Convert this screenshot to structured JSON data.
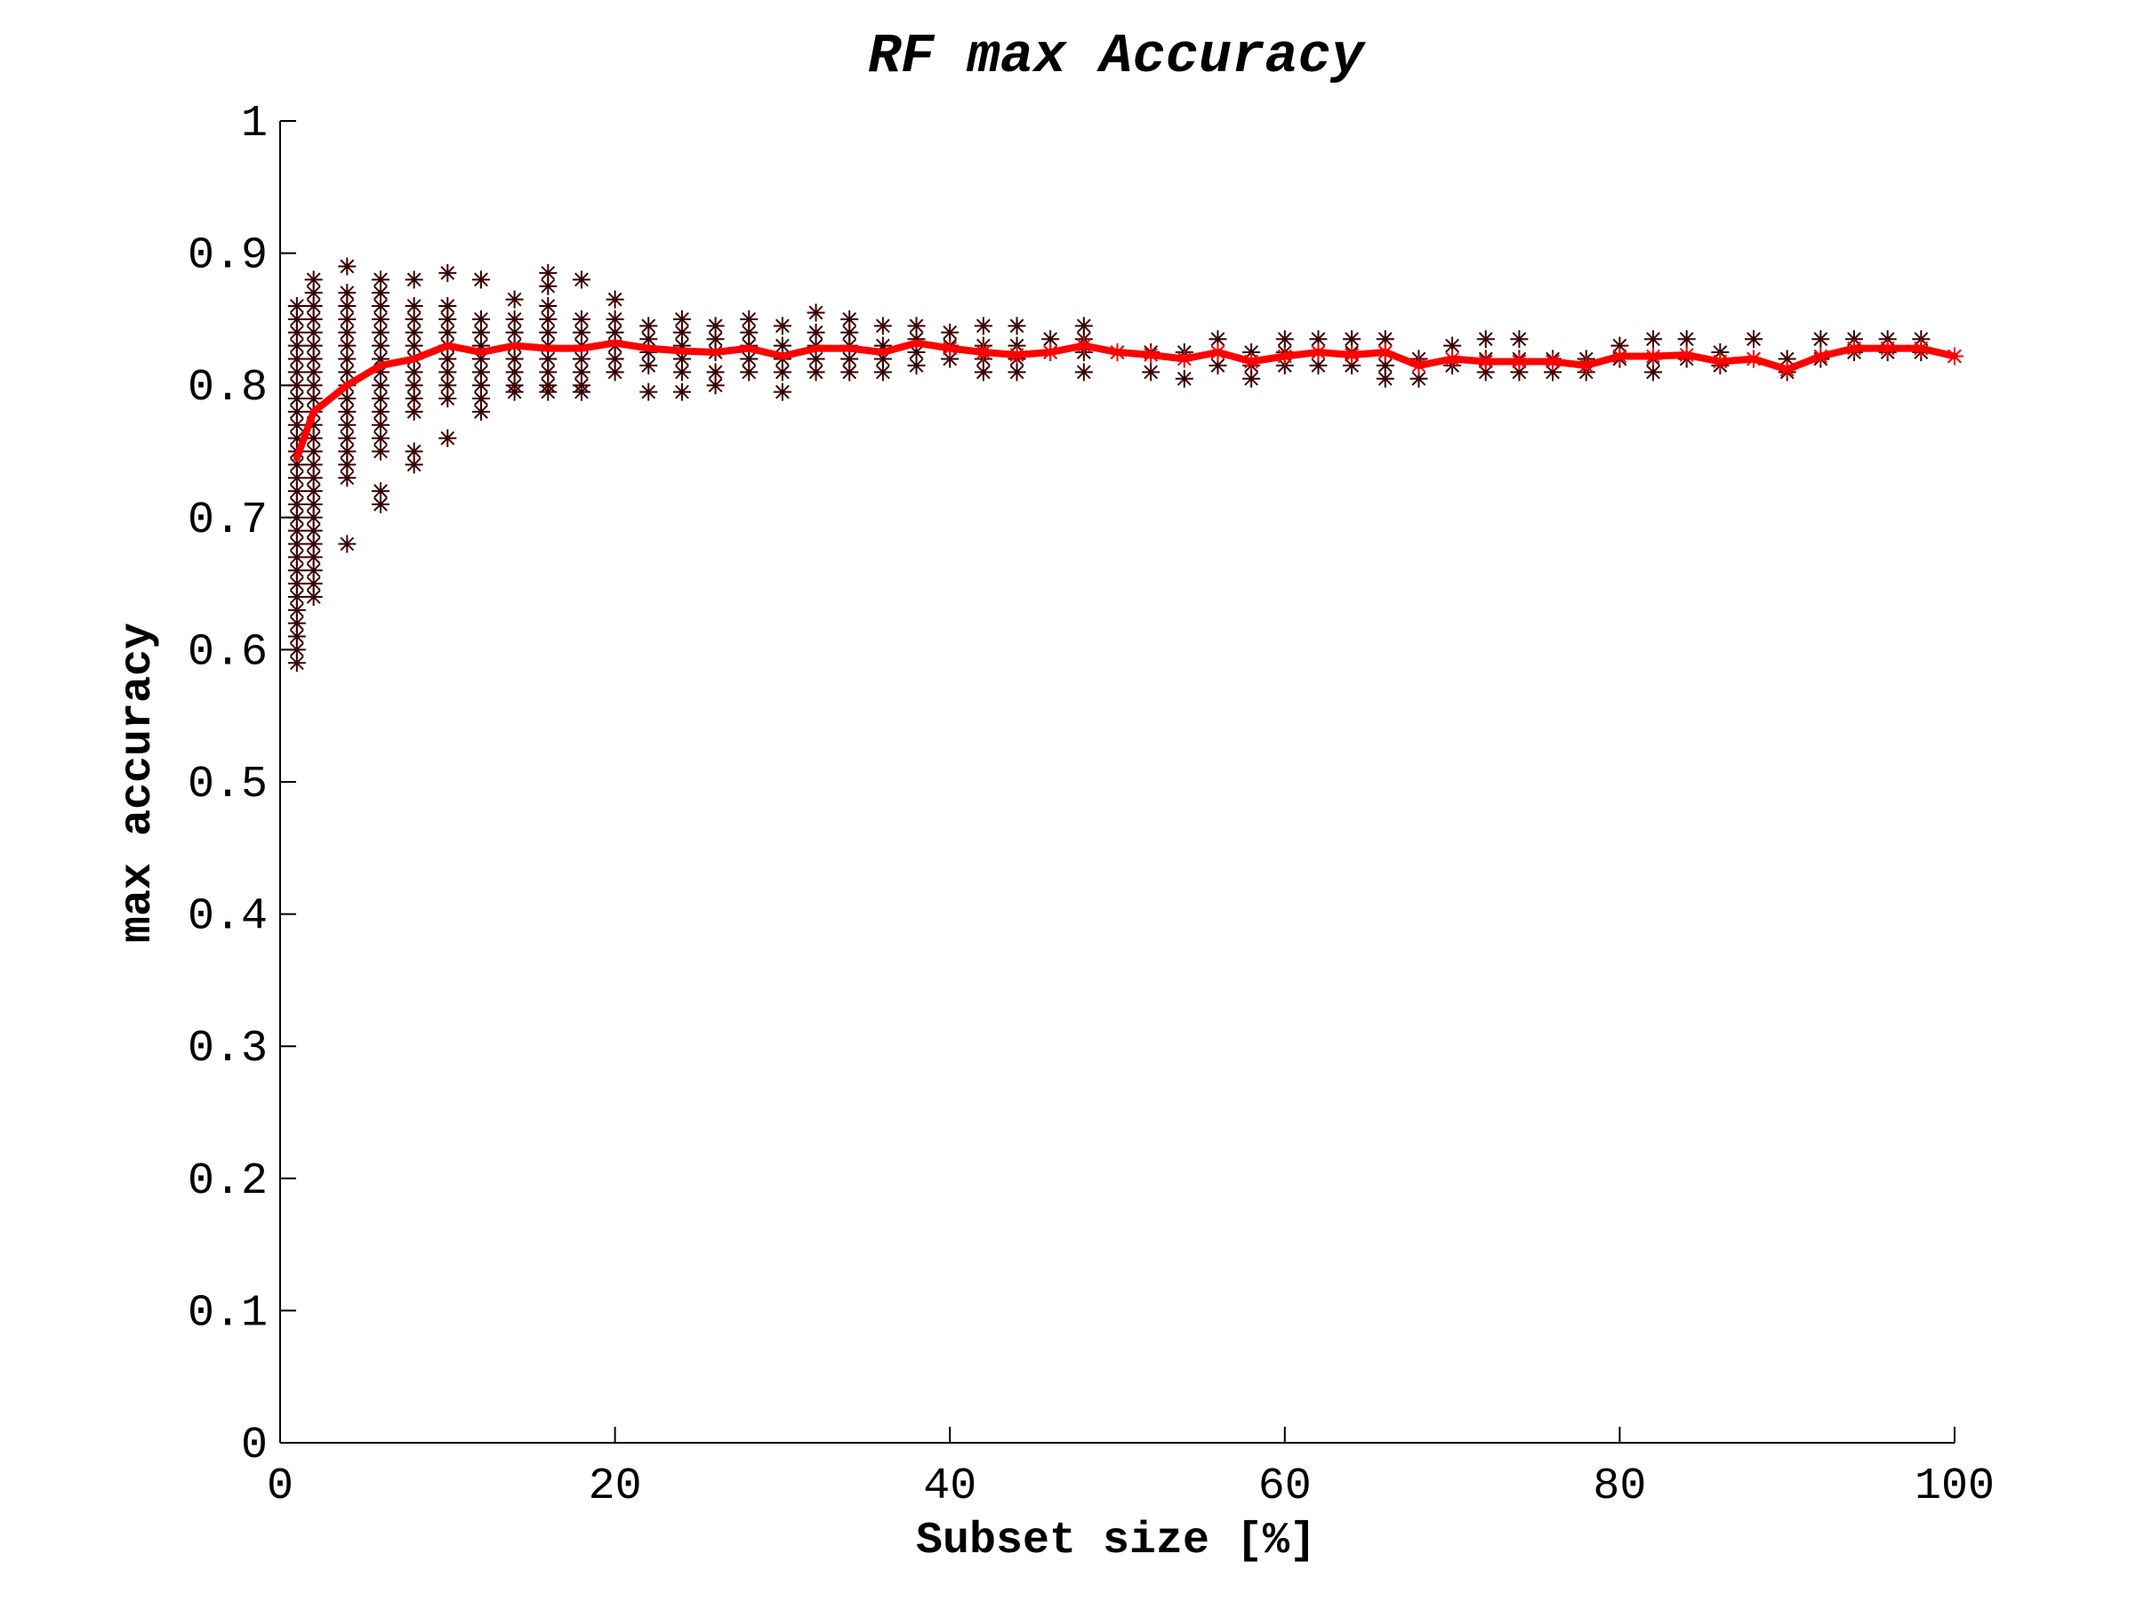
{
  "chart_data": {
    "type": "scatter",
    "title": "RF max Accuracy",
    "xlabel": "Subset size [%]",
    "ylabel": "max accuracy",
    "xlim": [
      0,
      100
    ],
    "ylim": [
      0,
      1
    ],
    "x_ticks": [
      0,
      20,
      40,
      60,
      80,
      100
    ],
    "x_tick_labels": [
      "0",
      "20",
      "40",
      "60",
      "80",
      "100"
    ],
    "y_ticks": [
      0,
      0.1,
      0.2,
      0.3,
      0.4,
      0.5,
      0.6,
      0.7,
      0.8,
      0.9,
      1
    ],
    "y_tick_labels": [
      "0",
      "0.1",
      "0.2",
      "0.3",
      "0.4",
      "0.5",
      "0.6",
      "0.7",
      "0.8",
      "0.9",
      "1"
    ],
    "grid": false,
    "series": [
      {
        "kind": "scatter",
        "marker": "asterisk",
        "color": "#3a0000",
        "points": [
          {
            "x": 1,
            "y": [
              0.86,
              0.85,
              0.84,
              0.83,
              0.82,
              0.81,
              0.8,
              0.79,
              0.78,
              0.77,
              0.76,
              0.75,
              0.74,
              0.73,
              0.72,
              0.71,
              0.7,
              0.69,
              0.68,
              0.67,
              0.66,
              0.65,
              0.64,
              0.63,
              0.62,
              0.61,
              0.6,
              0.59
            ]
          },
          {
            "x": 2,
            "y": [
              0.88,
              0.87,
              0.86,
              0.85,
              0.84,
              0.83,
              0.82,
              0.81,
              0.8,
              0.79,
              0.78,
              0.77,
              0.76,
              0.75,
              0.74,
              0.73,
              0.72,
              0.71,
              0.7,
              0.69,
              0.68,
              0.67,
              0.66,
              0.65,
              0.64
            ]
          },
          {
            "x": 4,
            "y": [
              0.89,
              0.87,
              0.86,
              0.85,
              0.84,
              0.83,
              0.82,
              0.81,
              0.8,
              0.79,
              0.78,
              0.77,
              0.76,
              0.75,
              0.74,
              0.73,
              0.68
            ]
          },
          {
            "x": 6,
            "y": [
              0.88,
              0.87,
              0.86,
              0.85,
              0.84,
              0.83,
              0.82,
              0.81,
              0.8,
              0.79,
              0.78,
              0.77,
              0.76,
              0.75,
              0.72,
              0.71
            ]
          },
          {
            "x": 8,
            "y": [
              0.88,
              0.86,
              0.85,
              0.84,
              0.83,
              0.82,
              0.81,
              0.8,
              0.79,
              0.78,
              0.75,
              0.74
            ]
          },
          {
            "x": 10,
            "y": [
              0.885,
              0.86,
              0.85,
              0.84,
              0.83,
              0.82,
              0.81,
              0.8,
              0.79,
              0.76
            ]
          },
          {
            "x": 12,
            "y": [
              0.88,
              0.85,
              0.84,
              0.83,
              0.82,
              0.81,
              0.8,
              0.79,
              0.78
            ]
          },
          {
            "x": 14,
            "y": [
              0.865,
              0.85,
              0.84,
              0.83,
              0.82,
              0.81,
              0.8,
              0.795
            ]
          },
          {
            "x": 16,
            "y": [
              0.885,
              0.875,
              0.86,
              0.85,
              0.84,
              0.83,
              0.82,
              0.81,
              0.8,
              0.795
            ]
          },
          {
            "x": 18,
            "y": [
              0.88,
              0.85,
              0.84,
              0.83,
              0.82,
              0.81,
              0.8,
              0.795
            ]
          },
          {
            "x": 20,
            "y": [
              0.865,
              0.85,
              0.84,
              0.83,
              0.82,
              0.81
            ]
          },
          {
            "x": 22,
            "y": [
              0.845,
              0.835,
              0.825,
              0.815,
              0.795
            ]
          },
          {
            "x": 24,
            "y": [
              0.85,
              0.84,
              0.83,
              0.82,
              0.81,
              0.795
            ]
          },
          {
            "x": 26,
            "y": [
              0.845,
              0.835,
              0.825,
              0.81,
              0.8
            ]
          },
          {
            "x": 28,
            "y": [
              0.85,
              0.84,
              0.83,
              0.82,
              0.81
            ]
          },
          {
            "x": 30,
            "y": [
              0.845,
              0.83,
              0.82,
              0.81,
              0.795
            ]
          },
          {
            "x": 32,
            "y": [
              0.855,
              0.84,
              0.83,
              0.82,
              0.81
            ]
          },
          {
            "x": 34,
            "y": [
              0.85,
              0.84,
              0.83,
              0.82,
              0.81
            ]
          },
          {
            "x": 36,
            "y": [
              0.845,
              0.83,
              0.82,
              0.81
            ]
          },
          {
            "x": 38,
            "y": [
              0.845,
              0.835,
              0.825,
              0.815
            ]
          },
          {
            "x": 40,
            "y": [
              0.84,
              0.83,
              0.82
            ]
          },
          {
            "x": 42,
            "y": [
              0.845,
              0.83,
              0.82,
              0.81
            ]
          },
          {
            "x": 44,
            "y": [
              0.845,
              0.83,
              0.82,
              0.81
            ]
          },
          {
            "x": 46,
            "y": [
              0.835,
              0.825
            ]
          },
          {
            "x": 48,
            "y": [
              0.845,
              0.835,
              0.825,
              0.81
            ]
          },
          {
            "x": 50,
            "y": [
              0.825
            ]
          },
          {
            "x": 52,
            "y": [
              0.825,
              0.81
            ]
          },
          {
            "x": 54,
            "y": [
              0.825,
              0.805
            ]
          },
          {
            "x": 56,
            "y": [
              0.835,
              0.825,
              0.815
            ]
          },
          {
            "x": 58,
            "y": [
              0.825,
              0.815,
              0.805
            ]
          },
          {
            "x": 60,
            "y": [
              0.835,
              0.825,
              0.815
            ]
          },
          {
            "x": 62,
            "y": [
              0.835,
              0.825,
              0.815
            ]
          },
          {
            "x": 64,
            "y": [
              0.835,
              0.825,
              0.815
            ]
          },
          {
            "x": 66,
            "y": [
              0.835,
              0.825,
              0.815,
              0.805
            ]
          },
          {
            "x": 68,
            "y": [
              0.82,
              0.805
            ]
          },
          {
            "x": 70,
            "y": [
              0.83,
              0.815
            ]
          },
          {
            "x": 72,
            "y": [
              0.835,
              0.82,
              0.81
            ]
          },
          {
            "x": 74,
            "y": [
              0.835,
              0.82,
              0.81
            ]
          },
          {
            "x": 76,
            "y": [
              0.82,
              0.81
            ]
          },
          {
            "x": 78,
            "y": [
              0.82,
              0.81
            ]
          },
          {
            "x": 80,
            "y": [
              0.83,
              0.82
            ]
          },
          {
            "x": 82,
            "y": [
              0.835,
              0.82,
              0.81
            ]
          },
          {
            "x": 84,
            "y": [
              0.835,
              0.82
            ]
          },
          {
            "x": 86,
            "y": [
              0.825,
              0.815
            ]
          },
          {
            "x": 88,
            "y": [
              0.835,
              0.82
            ]
          },
          {
            "x": 90,
            "y": [
              0.82,
              0.81
            ]
          },
          {
            "x": 92,
            "y": [
              0.835,
              0.82
            ]
          },
          {
            "x": 94,
            "y": [
              0.835,
              0.825
            ]
          },
          {
            "x": 96,
            "y": [
              0.835,
              0.825
            ]
          },
          {
            "x": 98,
            "y": [
              0.835,
              0.825
            ]
          },
          {
            "x": 100,
            "y": [
              0.822
            ]
          }
        ]
      },
      {
        "kind": "line",
        "color": "#ff0000",
        "x": [
          1,
          2,
          4,
          6,
          8,
          10,
          12,
          14,
          16,
          18,
          20,
          22,
          24,
          26,
          28,
          30,
          32,
          34,
          36,
          38,
          40,
          42,
          44,
          46,
          48,
          50,
          52,
          54,
          56,
          58,
          60,
          62,
          64,
          66,
          68,
          70,
          72,
          74,
          76,
          78,
          80,
          82,
          84,
          86,
          88,
          90,
          92,
          94,
          96,
          98,
          100
        ],
        "y": [
          0.745,
          0.78,
          0.8,
          0.815,
          0.82,
          0.83,
          0.825,
          0.83,
          0.828,
          0.828,
          0.832,
          0.828,
          0.826,
          0.825,
          0.828,
          0.822,
          0.828,
          0.828,
          0.825,
          0.832,
          0.828,
          0.825,
          0.823,
          0.825,
          0.83,
          0.825,
          0.823,
          0.82,
          0.825,
          0.818,
          0.822,
          0.825,
          0.823,
          0.825,
          0.815,
          0.82,
          0.818,
          0.818,
          0.818,
          0.815,
          0.822,
          0.822,
          0.823,
          0.818,
          0.82,
          0.812,
          0.822,
          0.828,
          0.828,
          0.828,
          0.822
        ]
      }
    ]
  }
}
